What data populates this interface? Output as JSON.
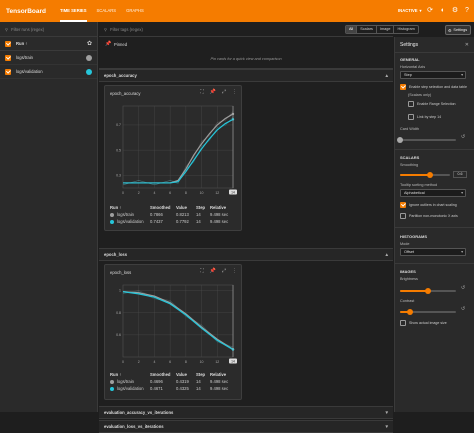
{
  "header": {
    "brand": "TensorBoard",
    "tabs": [
      {
        "label": "TIME SERIES",
        "active": true
      },
      {
        "label": "SCALARS"
      },
      {
        "label": "GRAPHS"
      }
    ],
    "inactive_label": "INACTIVE",
    "accent": "#f57c00"
  },
  "sidebar": {
    "filter_placeholder": "Filter runs (regex)",
    "run_header": "Run ↑",
    "runs": [
      {
        "name": "logs/train",
        "color": "#9e9e9e"
      },
      {
        "name": "logs/validation",
        "color": "#26c6da"
      }
    ]
  },
  "main": {
    "tag_filter_placeholder": "Filter tags (regex)",
    "view_tabs": [
      "All",
      "Scalars",
      "Image",
      "Histogram"
    ],
    "settings_button": "Settings",
    "pinned": {
      "title": "Pinned",
      "empty_text": "Pin cards for a quick view and comparison"
    },
    "groups": [
      {
        "name": "epoch_accuracy"
      },
      {
        "name": "epoch_loss"
      },
      {
        "name": "evaluation_accuracy_vs_iterations"
      },
      {
        "name": "evaluation_loss_vs_iterations"
      }
    ],
    "legend_headers": {
      "run": "Run ↑",
      "smoothed": "Smoothed",
      "value": "Value",
      "step": "Step",
      "relative": "Relative"
    },
    "accuracy_card": {
      "title": "epoch_accuracy",
      "rows": [
        {
          "run": "logs/train",
          "smoothed": "0.7866",
          "value": "0.8213",
          "step": "14",
          "relative": "9.498 sec"
        },
        {
          "run": "logs/validation",
          "smoothed": "0.7437",
          "value": "0.7792",
          "step": "14",
          "relative": "9.498 sec"
        }
      ]
    },
    "loss_card": {
      "title": "epoch_loss",
      "rows": [
        {
          "run": "logs/train",
          "smoothed": "0.4696",
          "value": "0.4319",
          "step": "14",
          "relative": "9.498 sec"
        },
        {
          "run": "logs/validation",
          "smoothed": "0.4671",
          "value": "0.4325",
          "step": "14",
          "relative": "9.498 sec"
        }
      ]
    }
  },
  "chart_data": [
    {
      "type": "line",
      "title": "epoch_accuracy",
      "x": [
        0,
        2,
        4,
        6,
        7,
        8,
        9,
        10,
        11,
        12,
        13,
        14
      ],
      "xticks": [
        "0",
        "2",
        "4",
        "6",
        "8",
        "10",
        "12",
        "14"
      ],
      "yticks": [
        "0.3",
        "0.5",
        "0.7"
      ],
      "ylim": [
        0.2,
        0.85
      ],
      "series": [
        {
          "name": "logs/train",
          "values": [
            0.24,
            0.24,
            0.24,
            0.24,
            0.26,
            0.35,
            0.46,
            0.55,
            0.63,
            0.7,
            0.75,
            0.787
          ]
        },
        {
          "name": "logs/validation",
          "values": [
            0.24,
            0.24,
            0.24,
            0.24,
            0.25,
            0.33,
            0.42,
            0.51,
            0.59,
            0.66,
            0.71,
            0.744
          ]
        }
      ]
    },
    {
      "type": "line",
      "title": "epoch_loss",
      "x": [
        0,
        2,
        4,
        6,
        8,
        10,
        12,
        14
      ],
      "xticks": [
        "0",
        "2",
        "4",
        "6",
        "8",
        "10",
        "12",
        "14"
      ],
      "yticks": [
        "0.6",
        "0.8",
        "1"
      ],
      "ylim": [
        0.4,
        1.05
      ],
      "series": [
        {
          "name": "logs/train",
          "values": [
            0.99,
            0.98,
            0.95,
            0.89,
            0.79,
            0.67,
            0.56,
            0.47
          ]
        },
        {
          "name": "logs/validation",
          "values": [
            0.99,
            0.97,
            0.94,
            0.88,
            0.78,
            0.66,
            0.55,
            0.467
          ]
        }
      ]
    }
  ],
  "settings": {
    "title": "Settings",
    "general": "GENERAL",
    "horizontal_axis_label": "Horizontal Axis",
    "horizontal_axis_value": "Step",
    "enable_step_selection": "Enable step selection and data table",
    "scalars_only": "(Scalars only)",
    "enable_range": "Enable Range Selection",
    "link_by_step": "Link by step 14",
    "card_width": "Card Width",
    "scalars": "SCALARS",
    "smoothing": "Smoothing",
    "smoothing_value": "0.6",
    "smoothing_fraction": 0.6,
    "tooltip_sorting": "Tooltip sorting method",
    "tooltip_value": "Alphabetical",
    "ignore_outliers": "Ignore outliers in chart scaling",
    "partition": "Partition non-monotonic X axis",
    "histograms": "HISTOGRAMS",
    "mode": "Mode",
    "mode_value": "Offset",
    "images": "IMAGES",
    "brightness": "Brightness",
    "contrast": "Contrast",
    "show_actual_size": "Show actual image size"
  }
}
